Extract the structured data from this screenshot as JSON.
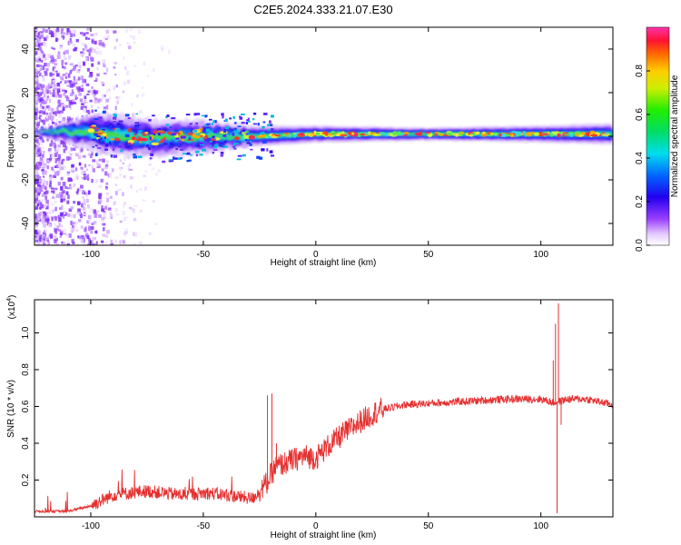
{
  "title": "C2E5.2024.333.21.07.E30",
  "chart_data": [
    {
      "type": "heatmap",
      "xlabel": "Height of straight line (km)",
      "ylabel": "Frequency (Hz)",
      "xlim": [
        -125,
        132
      ],
      "ylim": [
        -50,
        50
      ],
      "x_ticks": [
        -100,
        -50,
        0,
        50,
        100
      ],
      "y_ticks": [
        -40,
        -20,
        0,
        20,
        40
      ],
      "colorbar": {
        "label": "Normalized spectral amplitude",
        "range": [
          0,
          1
        ],
        "ticks": [
          "0.0",
          "0.2",
          "0.4",
          "0.6",
          "0.8"
        ],
        "tick_values": [
          0,
          0.2,
          0.4,
          0.6,
          0.8
        ],
        "colormap": "rainbow"
      },
      "ridge_center_hz": [
        {
          "x": -100,
          "y": 2
        },
        {
          "x": -75,
          "y": -1
        },
        {
          "x": -50,
          "y": 0
        },
        {
          "x": -25,
          "y": 0
        },
        {
          "x": 0,
          "y": 1
        },
        {
          "x": 50,
          "y": 1
        },
        {
          "x": 100,
          "y": 1
        },
        {
          "x": 132,
          "y": 1
        }
      ],
      "ridge_halfwidth_hz": [
        {
          "x": -100,
          "y": 10
        },
        {
          "x": -75,
          "y": 9
        },
        {
          "x": -50,
          "y": 8
        },
        {
          "x": -30,
          "y": 5
        },
        {
          "x": 0,
          "y": 4
        },
        {
          "x": 50,
          "y": 3
        },
        {
          "x": 100,
          "y": 4
        },
        {
          "x": 132,
          "y": 5
        }
      ]
    },
    {
      "type": "line",
      "xlabel": "Height of straight line (km)",
      "ylabel": "SNR (10 * v/v)",
      "y_multiplier": "(x10",
      "y_multiplier_exp": "4",
      "y_multiplier_close": ")",
      "xlim": [
        -125,
        132
      ],
      "ylim": [
        0,
        1.18
      ],
      "x_ticks": [
        -100,
        -50,
        0,
        50,
        100
      ],
      "y_ticks": [
        "0.2",
        "0.4",
        "0.6",
        "0.8",
        "1.0"
      ],
      "y_tick_values": [
        0.2,
        0.4,
        0.6,
        0.8,
        1.0
      ],
      "color": "#e53030",
      "envelope": [
        {
          "x": -125,
          "y": 0.03
        },
        {
          "x": -110,
          "y": 0.03
        },
        {
          "x": -100,
          "y": 0.06
        },
        {
          "x": -90,
          "y": 0.12
        },
        {
          "x": -75,
          "y": 0.14
        },
        {
          "x": -60,
          "y": 0.12
        },
        {
          "x": -48,
          "y": 0.13
        },
        {
          "x": -35,
          "y": 0.11
        },
        {
          "x": -28,
          "y": 0.1
        },
        {
          "x": -22,
          "y": 0.18
        },
        {
          "x": -18,
          "y": 0.27
        },
        {
          "x": -12,
          "y": 0.3
        },
        {
          "x": -5,
          "y": 0.33
        },
        {
          "x": 0,
          "y": 0.32
        },
        {
          "x": 5,
          "y": 0.38
        },
        {
          "x": 12,
          "y": 0.45
        },
        {
          "x": 20,
          "y": 0.52
        },
        {
          "x": 28,
          "y": 0.58
        },
        {
          "x": 40,
          "y": 0.61
        },
        {
          "x": 55,
          "y": 0.62
        },
        {
          "x": 70,
          "y": 0.63
        },
        {
          "x": 85,
          "y": 0.64
        },
        {
          "x": 100,
          "y": 0.64
        },
        {
          "x": 106,
          "y": 0.62
        },
        {
          "x": 112,
          "y": 0.64
        },
        {
          "x": 120,
          "y": 0.64
        },
        {
          "x": 132,
          "y": 0.61
        }
      ],
      "spikes": [
        {
          "x": -21.5,
          "y": 0.66
        },
        {
          "x": -19.5,
          "y": 0.67
        },
        {
          "x": -17.5,
          "y": 0.4
        },
        {
          "x": 105.5,
          "y": 0.85
        },
        {
          "x": 106.5,
          "y": 1.05
        },
        {
          "x": 107.2,
          "y": 0.02
        },
        {
          "x": 107.8,
          "y": 1.16
        },
        {
          "x": 109,
          "y": 0.5
        }
      ]
    }
  ]
}
